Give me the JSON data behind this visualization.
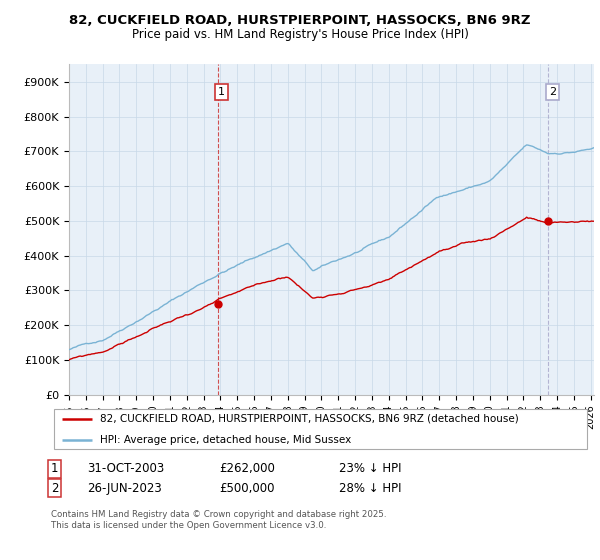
{
  "title1": "82, CUCKFIELD ROAD, HURSTPIERPOINT, HASSOCKS, BN6 9RZ",
  "title2": "Price paid vs. HM Land Registry's House Price Index (HPI)",
  "ylabel_ticks": [
    "£0",
    "£100K",
    "£200K",
    "£300K",
    "£400K",
    "£500K",
    "£600K",
    "£700K",
    "£800K",
    "£900K"
  ],
  "ytick_values": [
    0,
    100000,
    200000,
    300000,
    400000,
    500000,
    600000,
    700000,
    800000,
    900000
  ],
  "ylim": [
    0,
    950000
  ],
  "xlim_start": 1995.3,
  "xlim_end": 2026.2,
  "xticks": [
    1995,
    1996,
    1997,
    1998,
    1999,
    2000,
    2001,
    2002,
    2003,
    2004,
    2005,
    2006,
    2007,
    2008,
    2009,
    2010,
    2011,
    2012,
    2013,
    2014,
    2015,
    2016,
    2017,
    2018,
    2019,
    2020,
    2021,
    2022,
    2023,
    2024,
    2025,
    2026
  ],
  "purchase1_x": 2003.83,
  "purchase1_y": 262000,
  "purchase1_label": "1",
  "purchase2_x": 2023.49,
  "purchase2_y": 500000,
  "purchase2_label": "2",
  "hpi_color": "#7ab3d4",
  "price_color": "#cc0000",
  "vline1_color": "#cc3333",
  "vline2_color": "#aaaacc",
  "grid_color": "#c8d8e8",
  "bg_color": "#e8f0f8",
  "legend_label1": "82, CUCKFIELD ROAD, HURSTPIERPOINT, HASSOCKS, BN6 9RZ (detached house)",
  "legend_label2": "HPI: Average price, detached house, Mid Sussex",
  "annot1_date": "31-OCT-2003",
  "annot1_price": "£262,000",
  "annot1_hpi": "23% ↓ HPI",
  "annot2_date": "26-JUN-2023",
  "annot2_price": "£500,000",
  "annot2_hpi": "28% ↓ HPI",
  "footer": "Contains HM Land Registry data © Crown copyright and database right 2025.\nThis data is licensed under the Open Government Licence v3.0."
}
